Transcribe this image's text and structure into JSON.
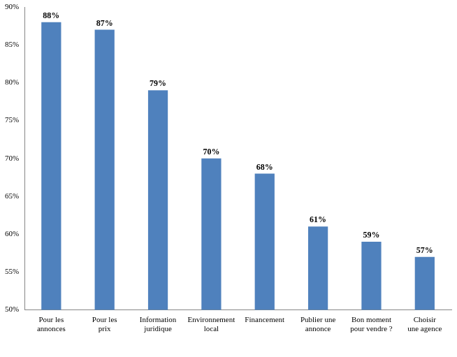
{
  "chart_data": {
    "type": "bar",
    "categories": [
      "Pour les annonces",
      "Pour les prix",
      "Information juridique",
      "Environnement local",
      "Financement",
      "Publier une annonce",
      "Bon moment pour vendre ?",
      "Choisir une agence"
    ],
    "values": [
      88,
      87,
      79,
      70,
      68,
      61,
      59,
      57
    ],
    "value_labels": [
      "88%",
      "87%",
      "79%",
      "70%",
      "68%",
      "61%",
      "59%",
      "57%"
    ],
    "data_labels": true,
    "color": "#4f81bd",
    "ylim": [
      50,
      90
    ],
    "yticks": [
      {
        "value": 50,
        "label": "50%"
      },
      {
        "value": 55,
        "label": "55%"
      },
      {
        "value": 60,
        "label": "60%"
      },
      {
        "value": 65,
        "label": "65%"
      },
      {
        "value": 70,
        "label": "70%"
      },
      {
        "value": 75,
        "label": "75%"
      },
      {
        "value": 80,
        "label": "80%"
      },
      {
        "value": 85,
        "label": "85%"
      },
      {
        "value": 90,
        "label": "90%"
      }
    ],
    "grid": false
  }
}
